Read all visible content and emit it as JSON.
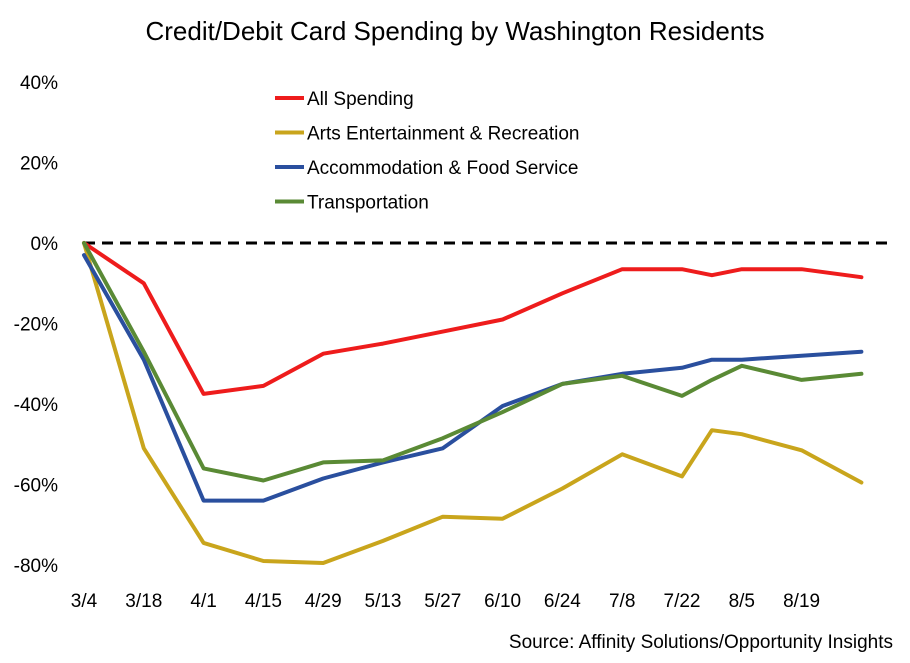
{
  "chart_data": {
    "type": "line",
    "title": "Credit/Debit Card Spending by Washington Residents",
    "source": "Source: Affinity Solutions/Opportunity Insights",
    "x_tick_labels": [
      "3/4",
      "3/18",
      "4/1",
      "4/15",
      "4/29",
      "5/13",
      "5/27",
      "6/10",
      "6/24",
      "7/8",
      "7/22",
      "8/5",
      "8/19"
    ],
    "y_tick_labels": [
      "40%",
      "20%",
      "0%",
      "-20%",
      "-40%",
      "-60%",
      "-80%"
    ],
    "y_tick_values": [
      40,
      20,
      0,
      -20,
      -40,
      -60,
      -80
    ],
    "ylim": [
      -80,
      40
    ],
    "x_unit": "days since 3/4",
    "xlim": [
      0,
      189
    ],
    "reference_line": {
      "y": 0,
      "style": "dashed",
      "color": "#000000"
    },
    "legend_position": "top-center",
    "grid": false,
    "series": [
      {
        "name": "All Spending",
        "color": "#ee1c1c",
        "points": [
          [
            0,
            0
          ],
          [
            14,
            -10
          ],
          [
            28,
            -37.5
          ],
          [
            42,
            -35.5
          ],
          [
            56,
            -27.5
          ],
          [
            70,
            -25
          ],
          [
            84,
            -22
          ],
          [
            98,
            -19
          ],
          [
            112,
            -12.5
          ],
          [
            126,
            -6.5
          ],
          [
            140,
            -6.5
          ],
          [
            147,
            -8
          ],
          [
            154,
            -6.5
          ],
          [
            168,
            -6.5
          ],
          [
            182,
            -8.5
          ]
        ]
      },
      {
        "name": "Arts Entertainment & Recreation",
        "color": "#c9a51c",
        "points": [
          [
            0,
            0
          ],
          [
            14,
            -51
          ],
          [
            28,
            -74.5
          ],
          [
            42,
            -79
          ],
          [
            56,
            -79.5
          ],
          [
            70,
            -74
          ],
          [
            84,
            -68
          ],
          [
            98,
            -68.5
          ],
          [
            112,
            -61
          ],
          [
            126,
            -52.5
          ],
          [
            140,
            -58
          ],
          [
            147,
            -46.5
          ],
          [
            154,
            -47.5
          ],
          [
            168,
            -51.5
          ],
          [
            182,
            -59.5
          ]
        ]
      },
      {
        "name": "Accommodation & Food Service",
        "color": "#2a4f9e",
        "points": [
          [
            0,
            -3
          ],
          [
            14,
            -29
          ],
          [
            28,
            -64
          ],
          [
            42,
            -64
          ],
          [
            56,
            -58.5
          ],
          [
            70,
            -54.5
          ],
          [
            84,
            -51
          ],
          [
            98,
            -40.5
          ],
          [
            112,
            -35
          ],
          [
            126,
            -32.5
          ],
          [
            140,
            -31
          ],
          [
            147,
            -29
          ],
          [
            154,
            -29
          ],
          [
            168,
            -28
          ],
          [
            182,
            -27
          ]
        ]
      },
      {
        "name": "Transportation",
        "color": "#5a8a35",
        "points": [
          [
            0,
            0
          ],
          [
            14,
            -27
          ],
          [
            28,
            -56
          ],
          [
            42,
            -59
          ],
          [
            56,
            -54.5
          ],
          [
            70,
            -54
          ],
          [
            84,
            -48.5
          ],
          [
            98,
            -42
          ],
          [
            112,
            -35
          ],
          [
            126,
            -33
          ],
          [
            140,
            -38
          ],
          [
            147,
            -34
          ],
          [
            154,
            -30.5
          ],
          [
            168,
            -34
          ],
          [
            182,
            -32.5
          ]
        ]
      }
    ]
  }
}
